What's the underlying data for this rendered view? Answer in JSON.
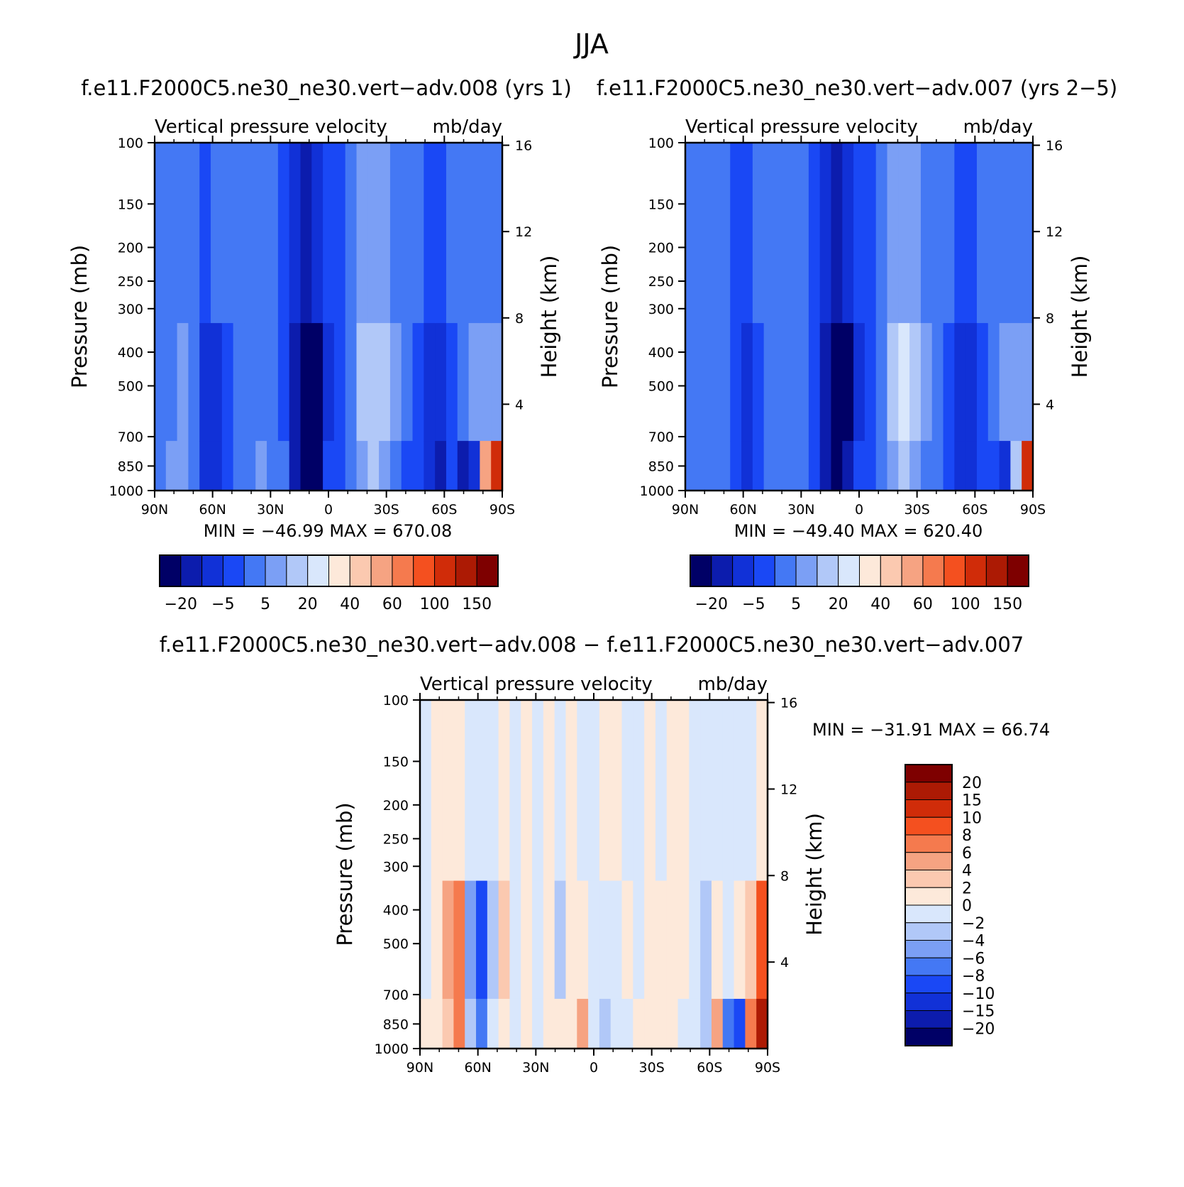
{
  "page": {
    "title": "JJA"
  },
  "colors": {
    "main": [
      "#000066",
      "#0c1cad",
      "#1131d7",
      "#1a48f5",
      "#4478f4",
      "#7b9ff5",
      "#b1c8f8",
      "#d9e7fc",
      "#fde9da",
      "#fbc9b0",
      "#f6a382",
      "#f57a4e",
      "#f4501f",
      "#d02c09",
      "#ac1a04",
      "#7e0000"
    ],
    "diff": [
      "#7e0000",
      "#ac1a04",
      "#d02c09",
      "#f4501f",
      "#f57a4e",
      "#f6a382",
      "#fbc9b0",
      "#fde9da",
      "#d9e7fc",
      "#b1c8f8",
      "#7b9ff5",
      "#4478f4",
      "#1a48f5",
      "#1131d7",
      "#0c1cad",
      "#000066"
    ]
  },
  "chart_data": [
    {
      "type": "heatmap",
      "id": "case",
      "title": "f.e11.F2000C5.ne30_ne30.vert−adv.008 (yrs 1)",
      "subtitle_left": "Vertical pressure velocity",
      "subtitle_right": "mb/day",
      "xlabel": "",
      "ylabel": "Pressure (mb)",
      "y2label": "Height (km)",
      "x_ticks": [
        "90N",
        "60N",
        "30N",
        "0",
        "30S",
        "60S",
        "90S"
      ],
      "x_range": [
        90,
        -90
      ],
      "y_ticks": [
        "100",
        "150",
        "200",
        "250",
        "300",
        "400",
        "500",
        "700",
        "850",
        "1000"
      ],
      "y_range": [
        100,
        1000
      ],
      "y2_ticks": [
        "16",
        "12",
        "8",
        "4"
      ],
      "stats": "MIN = −46.99   MAX = 670.08",
      "colorbar_labels": [
        "−20",
        "−5",
        "5",
        "20",
        "40",
        "60",
        "100",
        "150"
      ],
      "columns": [
        {
          "lat": 90,
          "top": 4,
          "mid": 4,
          "low": 4
        },
        {
          "lat": 84,
          "top": 4,
          "mid": 4,
          "low": 5
        },
        {
          "lat": 78,
          "top": 4,
          "mid": 5,
          "low": 5
        },
        {
          "lat": 72,
          "top": 4,
          "mid": 4,
          "low": 4
        },
        {
          "lat": 66,
          "top": 3,
          "mid": 2,
          "low": 2
        },
        {
          "lat": 60,
          "top": 4,
          "mid": 2,
          "low": 2
        },
        {
          "lat": 54,
          "top": 4,
          "mid": 3,
          "low": 3
        },
        {
          "lat": 48,
          "top": 4,
          "mid": 4,
          "low": 4
        },
        {
          "lat": 42,
          "top": 4,
          "mid": 4,
          "low": 4
        },
        {
          "lat": 36,
          "top": 4,
          "mid": 4,
          "low": 5
        },
        {
          "lat": 30,
          "top": 4,
          "mid": 4,
          "low": 4
        },
        {
          "lat": 24,
          "top": 3,
          "mid": 3,
          "low": 4
        },
        {
          "lat": 18,
          "top": 2,
          "mid": 1,
          "low": 1
        },
        {
          "lat": 12,
          "top": 1,
          "mid": 0,
          "low": 0
        },
        {
          "lat": 6,
          "top": 2,
          "mid": 0,
          "low": 0
        },
        {
          "lat": 0,
          "top": 3,
          "mid": 2,
          "low": 3
        },
        {
          "lat": -6,
          "top": 3,
          "mid": 3,
          "low": 3
        },
        {
          "lat": -12,
          "top": 4,
          "mid": 4,
          "low": 4
        },
        {
          "lat": -18,
          "top": 5,
          "mid": 6,
          "low": 5
        },
        {
          "lat": -24,
          "top": 5,
          "mid": 6,
          "low": 6
        },
        {
          "lat": -30,
          "top": 5,
          "mid": 6,
          "low": 5
        },
        {
          "lat": -36,
          "top": 4,
          "mid": 5,
          "low": 4
        },
        {
          "lat": -42,
          "top": 4,
          "mid": 4,
          "low": 3
        },
        {
          "lat": -48,
          "top": 4,
          "mid": 3,
          "low": 3
        },
        {
          "lat": -54,
          "top": 3,
          "mid": 2,
          "low": 2
        },
        {
          "lat": -60,
          "top": 3,
          "mid": 2,
          "low": 1
        },
        {
          "lat": -66,
          "top": 4,
          "mid": 3,
          "low": 3
        },
        {
          "lat": -72,
          "top": 4,
          "mid": 4,
          "low": 1
        },
        {
          "lat": -78,
          "top": 4,
          "mid": 5,
          "low": 2
        },
        {
          "lat": -84,
          "top": 4,
          "mid": 5,
          "low": 10
        },
        {
          "lat": -90,
          "top": 4,
          "mid": 5,
          "low": 13
        }
      ]
    },
    {
      "type": "heatmap",
      "id": "control",
      "title": "f.e11.F2000C5.ne30_ne30.vert−adv.007 (yrs 2−5)",
      "subtitle_left": "Vertical pressure velocity",
      "subtitle_right": "mb/day",
      "xlabel": "",
      "ylabel": "Pressure (mb)",
      "y2label": "Height (km)",
      "x_ticks": [
        "90N",
        "60N",
        "30N",
        "0",
        "30S",
        "60S",
        "90S"
      ],
      "x_range": [
        90,
        -90
      ],
      "y_ticks": [
        "100",
        "150",
        "200",
        "250",
        "300",
        "400",
        "500",
        "700",
        "850",
        "1000"
      ],
      "y_range": [
        100,
        1000
      ],
      "y2_ticks": [
        "16",
        "12",
        "8",
        "4"
      ],
      "stats": "MIN = −49.40   MAX = 620.40",
      "colorbar_labels": [
        "−20",
        "−5",
        "5",
        "20",
        "40",
        "60",
        "100",
        "150"
      ],
      "columns": [
        {
          "lat": 90,
          "top": 4,
          "mid": 4,
          "low": 4
        },
        {
          "lat": 84,
          "top": 4,
          "mid": 4,
          "low": 4
        },
        {
          "lat": 78,
          "top": 4,
          "mid": 4,
          "low": 4
        },
        {
          "lat": 72,
          "top": 4,
          "mid": 4,
          "low": 4
        },
        {
          "lat": 66,
          "top": 3,
          "mid": 3,
          "low": 3
        },
        {
          "lat": 60,
          "top": 3,
          "mid": 2,
          "low": 2
        },
        {
          "lat": 54,
          "top": 4,
          "mid": 3,
          "low": 3
        },
        {
          "lat": 48,
          "top": 4,
          "mid": 4,
          "low": 4
        },
        {
          "lat": 42,
          "top": 4,
          "mid": 4,
          "low": 4
        },
        {
          "lat": 36,
          "top": 4,
          "mid": 4,
          "low": 4
        },
        {
          "lat": 30,
          "top": 4,
          "mid": 4,
          "low": 4
        },
        {
          "lat": 24,
          "top": 3,
          "mid": 3,
          "low": 3
        },
        {
          "lat": 18,
          "top": 2,
          "mid": 1,
          "low": 1
        },
        {
          "lat": 12,
          "top": 1,
          "mid": 0,
          "low": 0
        },
        {
          "lat": 6,
          "top": 2,
          "mid": 0,
          "low": 1
        },
        {
          "lat": 0,
          "top": 3,
          "mid": 2,
          "low": 3
        },
        {
          "lat": -6,
          "top": 3,
          "mid": 3,
          "low": 3
        },
        {
          "lat": -12,
          "top": 4,
          "mid": 4,
          "low": 4
        },
        {
          "lat": -18,
          "top": 5,
          "mid": 6,
          "low": 5
        },
        {
          "lat": -24,
          "top": 5,
          "mid": 7,
          "low": 6
        },
        {
          "lat": -30,
          "top": 5,
          "mid": 6,
          "low": 5
        },
        {
          "lat": -36,
          "top": 4,
          "mid": 5,
          "low": 4
        },
        {
          "lat": -42,
          "top": 4,
          "mid": 4,
          "low": 4
        },
        {
          "lat": -48,
          "top": 4,
          "mid": 3,
          "low": 3
        },
        {
          "lat": -54,
          "top": 3,
          "mid": 2,
          "low": 2
        },
        {
          "lat": -60,
          "top": 3,
          "mid": 2,
          "low": 2
        },
        {
          "lat": -66,
          "top": 4,
          "mid": 3,
          "low": 3
        },
        {
          "lat": -72,
          "top": 4,
          "mid": 4,
          "low": 3
        },
        {
          "lat": -78,
          "top": 4,
          "mid": 5,
          "low": 2
        },
        {
          "lat": -84,
          "top": 4,
          "mid": 5,
          "low": 6
        },
        {
          "lat": -90,
          "top": 4,
          "mid": 5,
          "low": 13
        }
      ]
    },
    {
      "type": "heatmap",
      "id": "difference",
      "title": "f.e11.F2000C5.ne30_ne30.vert−adv.008 − f.e11.F2000C5.ne30_ne30.vert−adv.007",
      "subtitle_left": "Vertical pressure velocity",
      "subtitle_right": "mb/day",
      "xlabel": "",
      "ylabel": "Pressure (mb)",
      "y2label": "Height (km)",
      "x_ticks": [
        "90N",
        "60N",
        "30N",
        "0",
        "30S",
        "60S",
        "90S"
      ],
      "x_range": [
        90,
        -90
      ],
      "y_ticks": [
        "100",
        "150",
        "200",
        "250",
        "300",
        "400",
        "500",
        "700",
        "850",
        "1000"
      ],
      "y_range": [
        100,
        1000
      ],
      "y2_ticks": [
        "16",
        "12",
        "8",
        "4"
      ],
      "stats": "MIN = −31.91   MAX =   66.74",
      "colorbar_labels": [
        "20",
        "15",
        "10",
        "8",
        "6",
        "4",
        "2",
        "0",
        "−2",
        "−4",
        "−6",
        "−8",
        "−10",
        "−15",
        "−20"
      ],
      "columns": [
        {
          "lat": 90,
          "top": 8,
          "mid": 8,
          "low": 7
        },
        {
          "lat": 84,
          "top": 7,
          "mid": 7,
          "low": 7
        },
        {
          "lat": 78,
          "top": 7,
          "mid": 5,
          "low": 6
        },
        {
          "lat": 72,
          "top": 7,
          "mid": 4,
          "low": 4
        },
        {
          "lat": 66,
          "top": 8,
          "mid": 10,
          "low": 9
        },
        {
          "lat": 60,
          "top": 8,
          "mid": 12,
          "low": 11
        },
        {
          "lat": 54,
          "top": 8,
          "mid": 9,
          "low": 8
        },
        {
          "lat": 48,
          "top": 7,
          "mid": 6,
          "low": 7
        },
        {
          "lat": 42,
          "top": 8,
          "mid": 8,
          "low": 8
        },
        {
          "lat": 36,
          "top": 7,
          "mid": 7,
          "low": 7
        },
        {
          "lat": 30,
          "top": 8,
          "mid": 8,
          "low": 8
        },
        {
          "lat": 24,
          "top": 7,
          "mid": 7,
          "low": 7
        },
        {
          "lat": 18,
          "top": 8,
          "mid": 9,
          "low": 7
        },
        {
          "lat": 12,
          "top": 7,
          "mid": 7,
          "low": 7
        },
        {
          "lat": 6,
          "top": 8,
          "mid": 7,
          "low": 5
        },
        {
          "lat": 0,
          "top": 8,
          "mid": 8,
          "low": 8
        },
        {
          "lat": -6,
          "top": 7,
          "mid": 8,
          "low": 9
        },
        {
          "lat": -12,
          "top": 7,
          "mid": 8,
          "low": 8
        },
        {
          "lat": -18,
          "top": 8,
          "mid": 7,
          "low": 8
        },
        {
          "lat": -24,
          "top": 8,
          "mid": 8,
          "low": 7
        },
        {
          "lat": -30,
          "top": 7,
          "mid": 7,
          "low": 7
        },
        {
          "lat": -36,
          "top": 8,
          "mid": 7,
          "low": 7
        },
        {
          "lat": -42,
          "top": 7,
          "mid": 7,
          "low": 7
        },
        {
          "lat": -48,
          "top": 7,
          "mid": 7,
          "low": 8
        },
        {
          "lat": -54,
          "top": 8,
          "mid": 8,
          "low": 8
        },
        {
          "lat": -60,
          "top": 8,
          "mid": 9,
          "low": 9
        },
        {
          "lat": -66,
          "top": 8,
          "mid": 7,
          "low": 5
        },
        {
          "lat": -72,
          "top": 8,
          "mid": 8,
          "low": 11
        },
        {
          "lat": -78,
          "top": 8,
          "mid": 7,
          "low": 12
        },
        {
          "lat": -84,
          "top": 8,
          "mid": 6,
          "low": 4
        },
        {
          "lat": -90,
          "top": 7,
          "mid": 3,
          "low": 1
        }
      ]
    }
  ]
}
